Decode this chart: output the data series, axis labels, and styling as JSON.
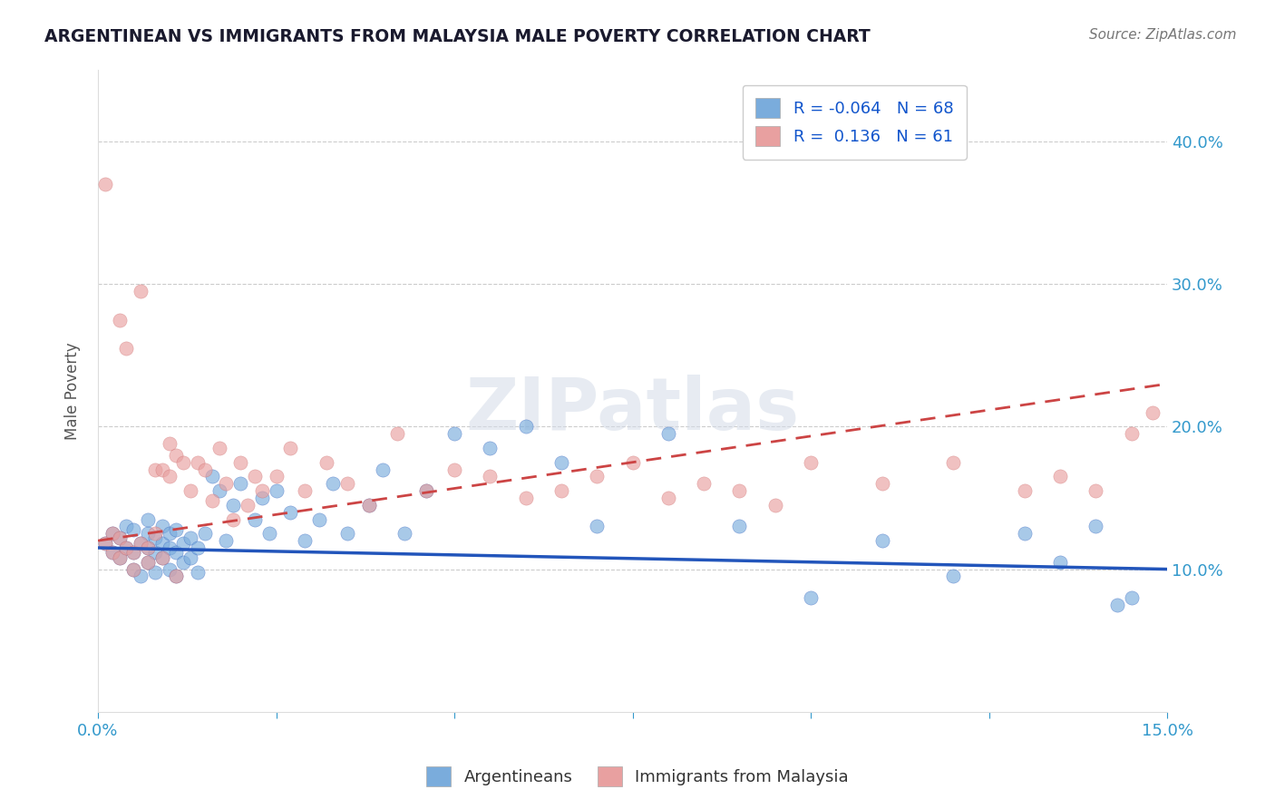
{
  "title": "ARGENTINEAN VS IMMIGRANTS FROM MALAYSIA MALE POVERTY CORRELATION CHART",
  "source": "Source: ZipAtlas.com",
  "ylabel": "Male Poverty",
  "xlim": [
    0.0,
    0.15
  ],
  "ylim": [
    0.0,
    0.45
  ],
  "ytick_positions": [
    0.1,
    0.2,
    0.3,
    0.4
  ],
  "ytick_labels": [
    "10.0%",
    "20.0%",
    "30.0%",
    "40.0%"
  ],
  "blue_color": "#7aacdc",
  "pink_color": "#e8a0a0",
  "blue_line_color": "#2255bb",
  "pink_line_color": "#cc4444",
  "legend_R_blue": "-0.064",
  "legend_N_blue": "68",
  "legend_R_pink": "0.136",
  "legend_N_pink": "61",
  "legend_label_blue": "Argentineans",
  "legend_label_pink": "Immigrants from Malaysia",
  "watermark": "ZIPatlas",
  "blue_scatter_x": [
    0.001,
    0.002,
    0.002,
    0.003,
    0.003,
    0.004,
    0.004,
    0.005,
    0.005,
    0.005,
    0.006,
    0.006,
    0.007,
    0.007,
    0.007,
    0.007,
    0.008,
    0.008,
    0.008,
    0.009,
    0.009,
    0.009,
    0.01,
    0.01,
    0.01,
    0.011,
    0.011,
    0.011,
    0.012,
    0.012,
    0.013,
    0.013,
    0.014,
    0.014,
    0.015,
    0.016,
    0.017,
    0.018,
    0.019,
    0.02,
    0.022,
    0.023,
    0.024,
    0.025,
    0.027,
    0.029,
    0.031,
    0.033,
    0.035,
    0.038,
    0.04,
    0.043,
    0.046,
    0.05,
    0.055,
    0.06,
    0.065,
    0.07,
    0.08,
    0.09,
    0.1,
    0.11,
    0.12,
    0.13,
    0.135,
    0.14,
    0.143,
    0.145
  ],
  "blue_scatter_y": [
    0.118,
    0.112,
    0.125,
    0.108,
    0.122,
    0.115,
    0.13,
    0.1,
    0.112,
    0.128,
    0.095,
    0.118,
    0.105,
    0.115,
    0.125,
    0.135,
    0.098,
    0.112,
    0.122,
    0.108,
    0.118,
    0.13,
    0.1,
    0.115,
    0.125,
    0.095,
    0.112,
    0.128,
    0.105,
    0.118,
    0.108,
    0.122,
    0.098,
    0.115,
    0.125,
    0.165,
    0.155,
    0.12,
    0.145,
    0.16,
    0.135,
    0.15,
    0.125,
    0.155,
    0.14,
    0.12,
    0.135,
    0.16,
    0.125,
    0.145,
    0.17,
    0.125,
    0.155,
    0.195,
    0.185,
    0.2,
    0.175,
    0.13,
    0.195,
    0.13,
    0.08,
    0.12,
    0.095,
    0.125,
    0.105,
    0.13,
    0.075,
    0.08
  ],
  "pink_scatter_x": [
    0.001,
    0.001,
    0.002,
    0.002,
    0.003,
    0.003,
    0.003,
    0.004,
    0.004,
    0.005,
    0.005,
    0.006,
    0.006,
    0.007,
    0.007,
    0.008,
    0.008,
    0.009,
    0.009,
    0.01,
    0.01,
    0.011,
    0.011,
    0.012,
    0.013,
    0.014,
    0.015,
    0.016,
    0.017,
    0.018,
    0.019,
    0.02,
    0.021,
    0.022,
    0.023,
    0.025,
    0.027,
    0.029,
    0.032,
    0.035,
    0.038,
    0.042,
    0.046,
    0.05,
    0.055,
    0.06,
    0.065,
    0.07,
    0.075,
    0.08,
    0.085,
    0.09,
    0.095,
    0.1,
    0.11,
    0.12,
    0.13,
    0.135,
    0.14,
    0.145,
    0.148
  ],
  "pink_scatter_y": [
    0.118,
    0.37,
    0.112,
    0.125,
    0.108,
    0.275,
    0.122,
    0.115,
    0.255,
    0.1,
    0.112,
    0.295,
    0.118,
    0.105,
    0.115,
    0.125,
    0.17,
    0.108,
    0.17,
    0.165,
    0.188,
    0.095,
    0.18,
    0.175,
    0.155,
    0.175,
    0.17,
    0.148,
    0.185,
    0.16,
    0.135,
    0.175,
    0.145,
    0.165,
    0.155,
    0.165,
    0.185,
    0.155,
    0.175,
    0.16,
    0.145,
    0.195,
    0.155,
    0.17,
    0.165,
    0.15,
    0.155,
    0.165,
    0.175,
    0.15,
    0.16,
    0.155,
    0.145,
    0.175,
    0.16,
    0.175,
    0.155,
    0.165,
    0.155,
    0.195,
    0.21
  ]
}
